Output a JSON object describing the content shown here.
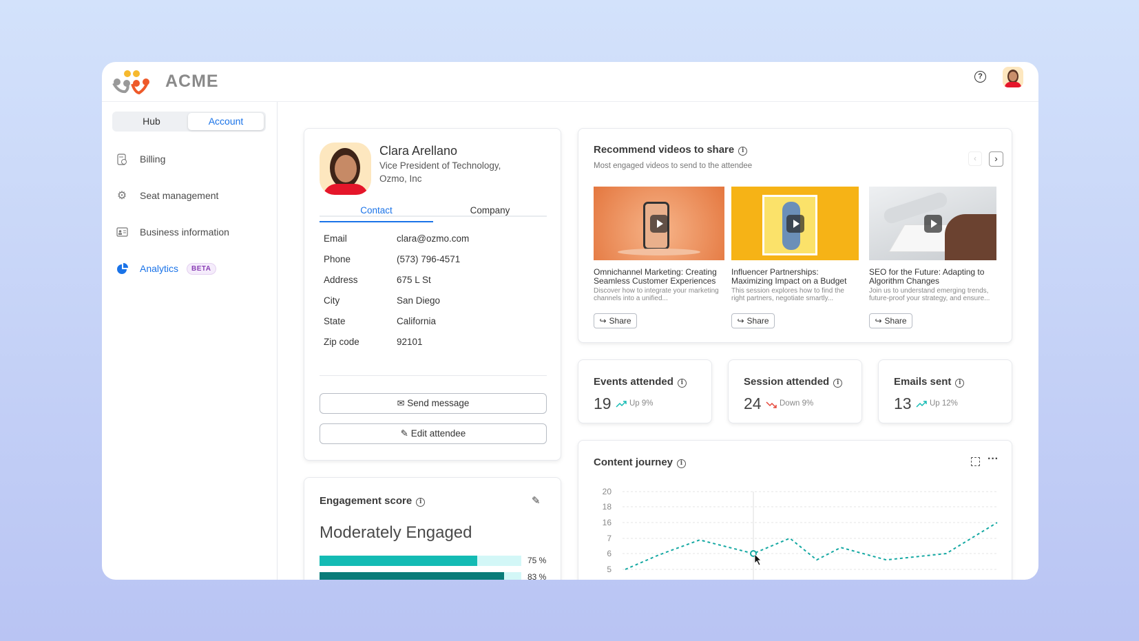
{
  "app": {
    "brand": "ACME"
  },
  "header": {
    "help_icon": "question-circle-icon",
    "avatar": "user-avatar"
  },
  "sidebar": {
    "toggle": [
      "Hub",
      "Account"
    ],
    "toggle_selected": "Account",
    "items": [
      {
        "label": "Billing",
        "icon": "billing-icon"
      },
      {
        "label": "Seat management",
        "icon": "gear-icon"
      },
      {
        "label": "Business information",
        "icon": "id-card-icon"
      },
      {
        "label": "Analytics",
        "icon": "pie-chart-icon",
        "badge": "BETA",
        "active": true
      }
    ]
  },
  "contact": {
    "name": "Clara Arellano",
    "title_line1": "Vice President of Technology,",
    "title_line2": "Ozmo, Inc",
    "tabs": [
      "Contact",
      "Company"
    ],
    "active_tab": "Contact",
    "fields": [
      {
        "label": "Email",
        "value": "clara@ozmo.com"
      },
      {
        "label": "Phone",
        "value": "(573) 796-4571"
      },
      {
        "label": "Address",
        "value": "675 L St"
      },
      {
        "label": "City",
        "value": "San Diego"
      },
      {
        "label": "State",
        "value": "California"
      },
      {
        "label": "Zip code",
        "value": "92101"
      }
    ],
    "send_label": "Send message",
    "edit_label": "Edit attendee"
  },
  "engagement": {
    "title": "Engagement score",
    "level": "Moderately Engaged",
    "bars": [
      {
        "percent": 75,
        "label": "75 %",
        "color": "#14bbb4"
      },
      {
        "percent": 83,
        "label": "83 %",
        "color": "#0a7c79"
      }
    ],
    "track_color": "#d3f7f7"
  },
  "videos": {
    "title": "Recommend videos to share",
    "subtitle": "Most engaged videos to send to the attendee",
    "items": [
      {
        "title": "Omnichannel Marketing: Creating Seamless Customer Experiences",
        "desc": "Discover how to integrate your marketing channels into a unified...",
        "share": "Share"
      },
      {
        "title": "Influencer Partnerships: Maximizing Impact on a Budget",
        "desc": "This session explores how to find the right partners, negotiate smartly...",
        "share": "Share"
      },
      {
        "title": "SEO for the Future: Adapting to Algorithm Changes",
        "desc": "Join us to understand emerging trends, future-proof your strategy, and ensure...",
        "share": "Share"
      }
    ]
  },
  "stats": [
    {
      "title": "Events attended",
      "value": "19",
      "trend": "Up 9%",
      "direction": "up",
      "color": "#14bbb4"
    },
    {
      "title": "Session attended",
      "value": "24",
      "trend": "Down 9%",
      "direction": "down",
      "color": "#e5483b"
    },
    {
      "title": "Emails sent",
      "value": "13",
      "trend": "Up 12%",
      "direction": "up",
      "color": "#14bbb4"
    }
  ],
  "chart_data": {
    "type": "line",
    "title": "Content journey",
    "y_ticks": [
      "20",
      "18",
      "16",
      "7",
      "6",
      "5"
    ],
    "values": [
      5,
      5.9,
      6.9,
      6.0,
      7.1,
      5.6,
      6.4,
      5.6,
      6.0,
      16
    ],
    "highlighted_index": 3,
    "line_color": "#14a8a2",
    "line_style": "dashed",
    "grid": true
  }
}
